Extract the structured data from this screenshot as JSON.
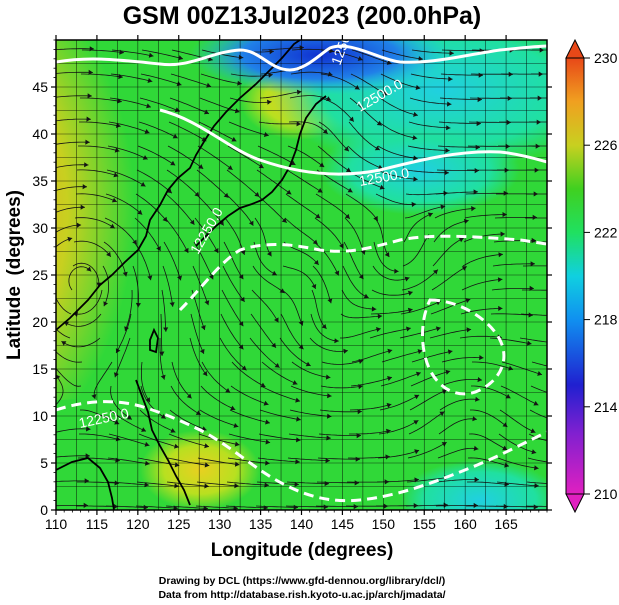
{
  "chart_data": {
    "type": "heatmap",
    "title": "GSM 00Z13Jul2023 (200.0hPa)",
    "xlabel": "Longitude (degrees)",
    "ylabel": "Latitude  (degrees)",
    "xlim": [
      110,
      170
    ],
    "ylim": [
      0,
      50
    ],
    "x_ticks": [
      "110",
      "115",
      "120",
      "125",
      "130",
      "135",
      "140",
      "145",
      "150",
      "155",
      "160",
      "165"
    ],
    "y_ticks": [
      "0",
      "5",
      "10",
      "15",
      "20",
      "25",
      "30",
      "35",
      "40",
      "45"
    ],
    "colorbar": {
      "min": 210,
      "max": 230,
      "tick_labels": [
        "230",
        "226",
        "222",
        "218",
        "214",
        "210"
      ],
      "colors": [
        "#e020c0",
        "#2020d0",
        "#10c0f0",
        "#20e060",
        "#40d020",
        "#c8d020",
        "#f0a020",
        "#e84818"
      ]
    },
    "contour_levels": [
      "12250.0",
      "12500.0"
    ],
    "field_samples": [
      {
        "lon": 112,
        "lat": 33,
        "value": 227
      },
      {
        "lon": 140,
        "lat": 45,
        "value": 224
      },
      {
        "lon": 138,
        "lat": 47,
        "value": 215
      },
      {
        "lon": 150,
        "lat": 44,
        "value": 219
      },
      {
        "lon": 130,
        "lat": 25,
        "value": 222
      },
      {
        "lon": 150,
        "lat": 15,
        "value": 223
      }
    ],
    "grid": true
  },
  "credits": [
    "Drawing by DCL (https://www.gfd-dennou.org/library/dcl/)",
    "Data from http://database.rish.kyoto-u.ac.jp/arch/jmadata/"
  ],
  "style": {
    "contour_color": "#ffffff",
    "coast_color": "#000000",
    "grid_color": "#000000",
    "stream_color": "#141414"
  }
}
